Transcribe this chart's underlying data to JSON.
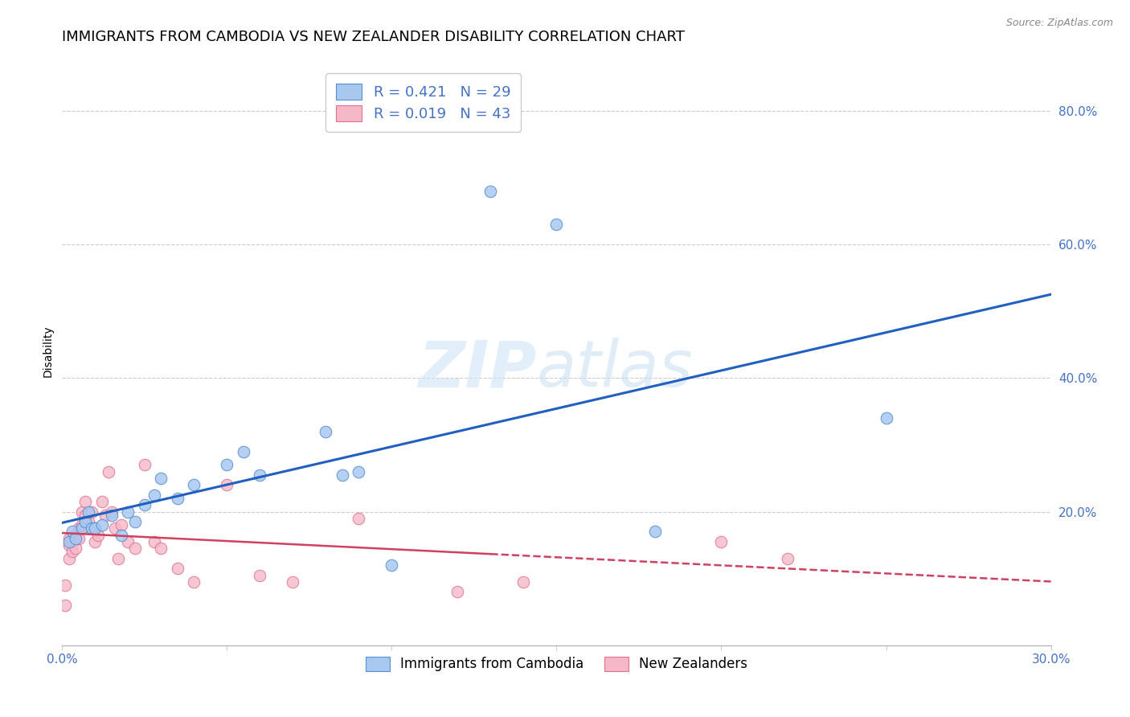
{
  "title": "IMMIGRANTS FROM CAMBODIA VS NEW ZEALANDER DISABILITY CORRELATION CHART",
  "source": "Source: ZipAtlas.com",
  "ylabel": "Disability",
  "xlim": [
    0.0,
    0.3
  ],
  "ylim": [
    0.0,
    0.88
  ],
  "xticks": [
    0.0,
    0.05,
    0.1,
    0.15,
    0.2,
    0.25,
    0.3
  ],
  "xtick_labels": [
    "0.0%",
    "",
    "",
    "",
    "",
    "",
    "30.0%"
  ],
  "yticks_right": [
    0.2,
    0.4,
    0.6,
    0.8
  ],
  "ytick_labels_right": [
    "20.0%",
    "40.0%",
    "60.0%",
    "80.0%"
  ],
  "blue_R": 0.421,
  "blue_N": 29,
  "pink_R": 0.019,
  "pink_N": 43,
  "blue_label": "Immigrants from Cambodia",
  "pink_label": "New Zealanders",
  "blue_color": "#a8c8f0",
  "pink_color": "#f5b8c8",
  "blue_edge_color": "#5590d0",
  "pink_edge_color": "#e07090",
  "blue_line_color": "#2060c0",
  "pink_line_color": "#d04060",
  "background_color": "#ffffff",
  "blue_points_x": [
    0.002,
    0.003,
    0.004,
    0.006,
    0.007,
    0.008,
    0.009,
    0.01,
    0.012,
    0.015,
    0.018,
    0.02,
    0.022,
    0.025,
    0.028,
    0.03,
    0.035,
    0.04,
    0.05,
    0.055,
    0.06,
    0.08,
    0.085,
    0.09,
    0.1,
    0.13,
    0.15,
    0.25,
    0.18
  ],
  "blue_points_y": [
    0.155,
    0.17,
    0.16,
    0.175,
    0.185,
    0.2,
    0.175,
    0.175,
    0.18,
    0.195,
    0.165,
    0.2,
    0.185,
    0.21,
    0.225,
    0.25,
    0.22,
    0.24,
    0.27,
    0.29,
    0.255,
    0.32,
    0.255,
    0.26,
    0.12,
    0.68,
    0.63,
    0.34,
    0.17
  ],
  "pink_points_x": [
    0.001,
    0.001,
    0.002,
    0.002,
    0.002,
    0.003,
    0.003,
    0.004,
    0.004,
    0.005,
    0.005,
    0.006,
    0.006,
    0.007,
    0.007,
    0.008,
    0.008,
    0.009,
    0.01,
    0.01,
    0.011,
    0.012,
    0.013,
    0.014,
    0.015,
    0.016,
    0.017,
    0.018,
    0.02,
    0.022,
    0.025,
    0.028,
    0.03,
    0.035,
    0.04,
    0.05,
    0.06,
    0.07,
    0.09,
    0.12,
    0.14,
    0.2,
    0.22
  ],
  "pink_points_y": [
    0.06,
    0.09,
    0.13,
    0.15,
    0.16,
    0.14,
    0.155,
    0.145,
    0.165,
    0.16,
    0.175,
    0.18,
    0.2,
    0.215,
    0.195,
    0.185,
    0.175,
    0.2,
    0.155,
    0.175,
    0.165,
    0.215,
    0.195,
    0.26,
    0.2,
    0.175,
    0.13,
    0.18,
    0.155,
    0.145,
    0.27,
    0.155,
    0.145,
    0.115,
    0.095,
    0.24,
    0.105,
    0.095,
    0.19,
    0.08,
    0.095,
    0.155,
    0.13
  ],
  "watermark_zip": "ZIP",
  "watermark_atlas": "atlas",
  "title_fontsize": 13,
  "axis_label_fontsize": 10,
  "tick_fontsize": 11,
  "legend_fontsize": 13
}
